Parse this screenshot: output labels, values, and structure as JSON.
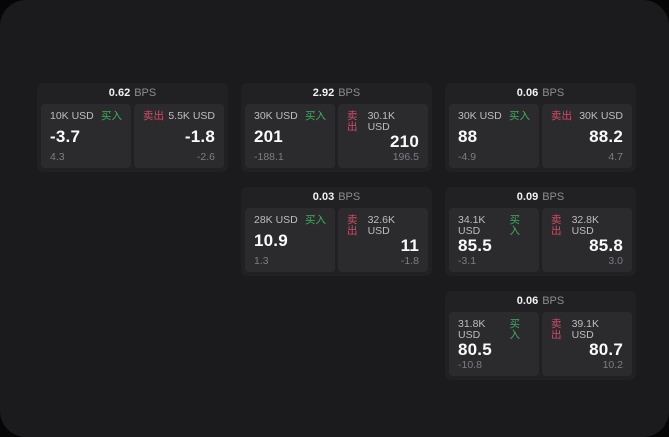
{
  "labels": {
    "bps": "BPS",
    "buy": "买入",
    "sell": "卖出"
  },
  "colors": {
    "panel_bg": "#1b1b1d",
    "card_bg": "#212123",
    "subpanel_bg": "#2b2b2e",
    "buy_green": "#3fae5e",
    "sell_red": "#cd4f66"
  },
  "cards": [
    {
      "bps": "0.62",
      "buy": {
        "amount": "10K USD",
        "value": "-3.7",
        "delta": "4.3"
      },
      "sell": {
        "amount": "5.5K USD",
        "value": "-1.8",
        "delta": "-2.6"
      }
    },
    {
      "bps": "2.92",
      "buy": {
        "amount": "30K USD",
        "value": "201",
        "delta": "-188.1"
      },
      "sell": {
        "amount": "30.1K USD",
        "value": "210",
        "delta": "196.5"
      }
    },
    {
      "bps": "0.06",
      "buy": {
        "amount": "30K USD",
        "value": "88",
        "delta": "-4.9"
      },
      "sell": {
        "amount": "30K USD",
        "value": "88.2",
        "delta": "4.7"
      }
    },
    {
      "bps": "0.03",
      "buy": {
        "amount": "28K USD",
        "value": "10.9",
        "delta": "1.3"
      },
      "sell": {
        "amount": "32.6K USD",
        "value": "11",
        "delta": "-1.8"
      }
    },
    {
      "bps": "0.09",
      "buy": {
        "amount": "34.1K USD",
        "value": "85.5",
        "delta": "-3.1"
      },
      "sell": {
        "amount": "32.8K USD",
        "value": "85.8",
        "delta": "3.0"
      }
    },
    {
      "bps": "0.06",
      "buy": {
        "amount": "31.8K USD",
        "value": "80.5",
        "delta": "-10.8"
      },
      "sell": {
        "amount": "39.1K USD",
        "value": "80.7",
        "delta": "10.2"
      }
    }
  ]
}
